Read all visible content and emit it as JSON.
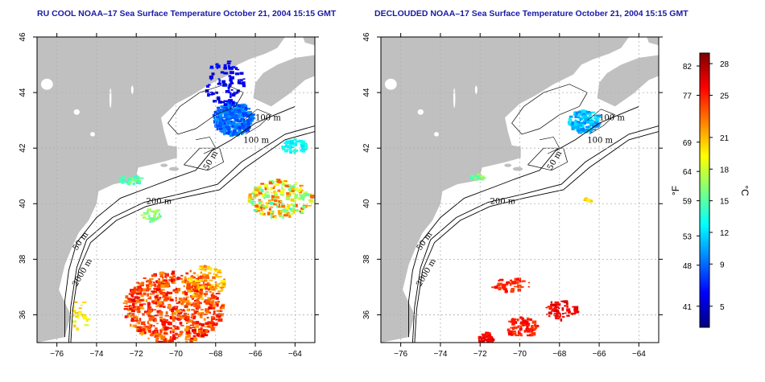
{
  "panels": [
    {
      "title": "RU COOL NOAA–17 Sea Surface Temperature October 21, 2004 15:15 GMT",
      "mode": "full",
      "contour_labels": [
        "100 m",
        "100 m",
        "50 m",
        "200 m",
        "50 m",
        "2000 m"
      ]
    },
    {
      "title": "DECLOUDED NOAA–17 Sea Surface Temperature October 21, 2004 15:15 GMT",
      "mode": "declouded",
      "contour_labels": [
        "100 m",
        "100 m",
        "50 m",
        "200 m",
        "50 m",
        "2000 m"
      ]
    }
  ],
  "axes": {
    "x_ticks": [
      "−76",
      "−74",
      "−72",
      "−70",
      "−68",
      "−66",
      "−64"
    ],
    "y_ticks": [
      "36",
      "38",
      "40",
      "42",
      "44",
      "46"
    ],
    "lon_range": [
      -77,
      -63
    ],
    "lat_range": [
      35,
      46
    ],
    "grid": "dotted"
  },
  "colorbar": {
    "unit_f": "°F",
    "unit_c": "°C",
    "f_labels": [
      "82",
      "77",
      "69",
      "64",
      "59",
      "53",
      "48",
      "41"
    ],
    "c_labels": [
      "28",
      "25",
      "21",
      "18",
      "15",
      "12",
      "9",
      "5"
    ],
    "range_c": [
      3,
      29
    ],
    "colors": [
      "#00007f",
      "#0000ff",
      "#007fff",
      "#00ffff",
      "#7fff7f",
      "#ffff00",
      "#ff7f00",
      "#ff0000",
      "#7f0000"
    ]
  },
  "colors": {
    "land": "#c0c0c0",
    "ocean": "#ffffff",
    "title": "#1a1aa6"
  }
}
